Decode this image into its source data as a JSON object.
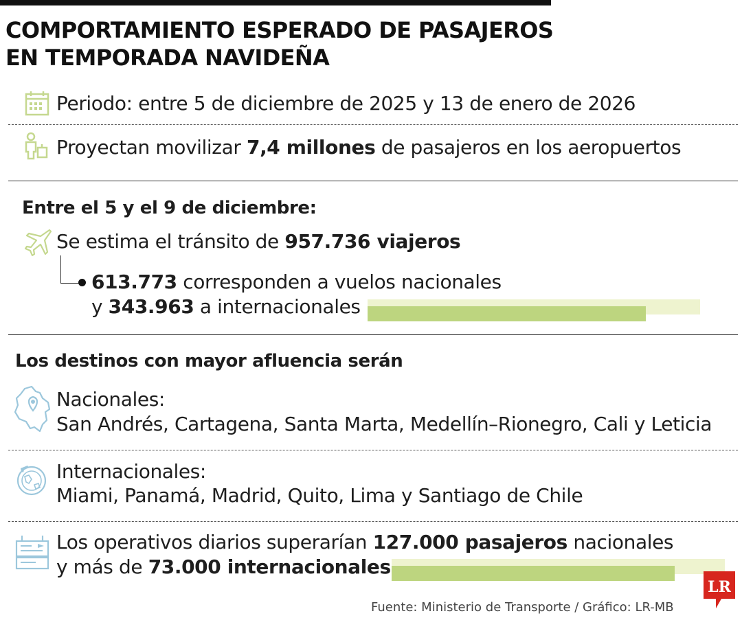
{
  "title": {
    "line1": "COMPORTAMIENTO ESPERADO DE PASAJEROS",
    "line2": "EN TEMPORADA NAVIDEÑA"
  },
  "periodo": {
    "icon": "calendar-icon",
    "text": "Periodo: entre 5 de diciembre de 2025 y 13 de enero de 2026"
  },
  "proyeccion": {
    "icon": "passenger-luggage-icon",
    "pre": "Proyectan movilizar ",
    "bold": "7,4 millones",
    "post": " de pasajeros en los aeropuertos"
  },
  "diciembre": {
    "heading": "Entre el 5 y el 9 de diciembre:",
    "icon": "airplane-icon",
    "pre": "Se estima el tránsito de ",
    "bold": "957.736 viajeros",
    "detail": {
      "nacionales_value": "613.773",
      "nacionales_text": " corresponden a vuelos nacionales",
      "y": "y ",
      "internacionales_value": "343.963",
      "internacionales_text": " a internacionales"
    },
    "bar_fraction": 0.837
  },
  "destinos": {
    "heading": "Los destinos con mayor afluencia serán",
    "nacionales": {
      "icon": "colombia-map-pin-icon",
      "label": "Nacionales:",
      "list": "San Andrés, Cartagena, Santa Marta, Medellín–Rionegro, Cali y Leticia"
    },
    "internacionales": {
      "icon": "globe-airplane-icon",
      "label": "Internacionales:",
      "list": "Miami, Panamá, Madrid, Quito, Lima y Santiago de Chile"
    }
  },
  "operativos": {
    "icon": "departures-board-icon",
    "pre": "Los operativos diarios superarían ",
    "bold1": "127.000 pasajeros",
    "post1": " nacionales",
    "line2_pre": "y más de ",
    "bold2": "73.000 internacionales",
    "bar_fraction": 0.85
  },
  "source": "Fuente: Ministerio de Transporte / Gráfico: LR-MB",
  "logo": "LR",
  "colors": {
    "accent_green": "#bdd57f",
    "light_green": "#eef3cf",
    "icon_green": "#c5d88f",
    "icon_blue": "#9cc7dc",
    "logo_red": "#d7261e"
  }
}
